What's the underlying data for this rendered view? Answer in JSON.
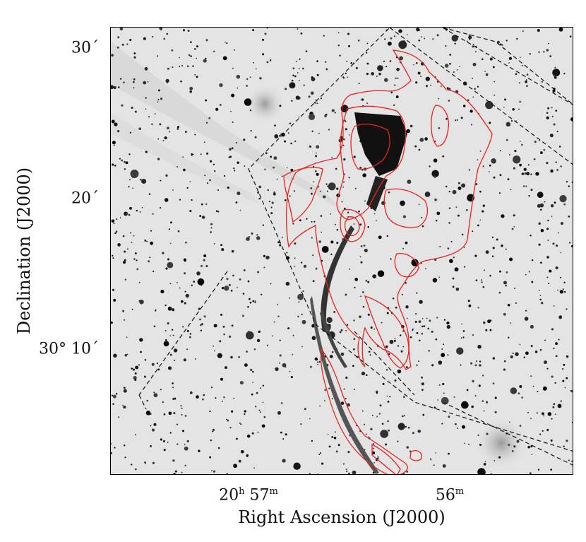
{
  "axes": {
    "xlabel": "Right Ascension (J2000)",
    "ylabel": "Declination (J2000)",
    "x_ticks": [
      {
        "h": "20",
        "m": "57"
      },
      {
        "m": "56"
      }
    ],
    "y_ticks": [
      "30´",
      "20´",
      "30° 10´"
    ]
  },
  "colors": {
    "contour": "#e8231f",
    "dashed_box": "#111111",
    "background": "#e6e6e6"
  }
}
